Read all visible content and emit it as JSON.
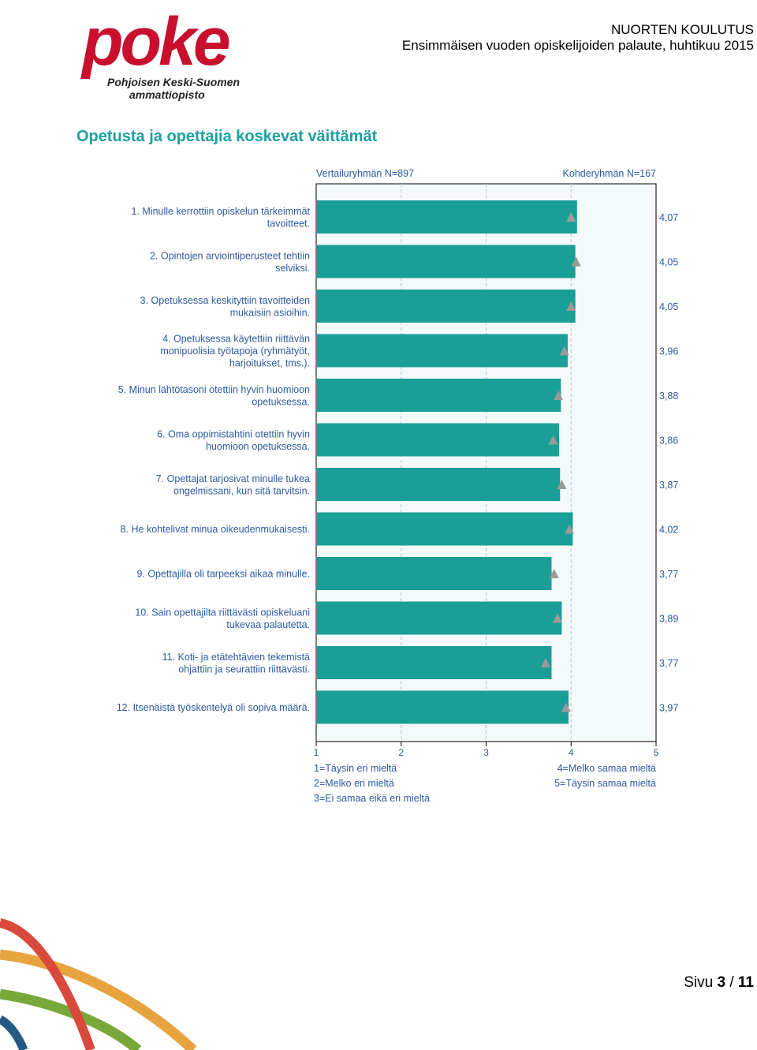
{
  "header": {
    "org": "NUORTEN KOULUTUS",
    "subtitle": "Ensimmäisen vuoden opiskelijoiden palaute, huhtikuu 2015"
  },
  "logo": {
    "word": "poke",
    "line1": "Pohjoisen Keski-Suomen",
    "line2": "ammattiopisto",
    "color": "#c8102e"
  },
  "section_title": "Opetusta ja opettajia koskevat väittämät",
  "page": {
    "prefix": "Sivu",
    "current": "3",
    "separator": "/",
    "total": "11"
  },
  "chart_data": {
    "type": "bar",
    "orientation": "horizontal",
    "xlim": [
      1,
      5
    ],
    "xticks": [
      "1",
      "2",
      "3",
      "4",
      "5"
    ],
    "grid": true,
    "comparison_label": "Vertailuryhmän  N=897",
    "target_label": "Kohderyhmän N=167",
    "bar_color": "#1a9e98",
    "marker_color": "#9a9a9a",
    "categories": [
      [
        "1. Minulle kerrottiin opiskelun tärkeimmät",
        "tavoitteet."
      ],
      [
        "2. Opintojen arviointiperusteet tehtiin",
        "selviksi."
      ],
      [
        "3. Opetuksessa keskityttiin tavoitteiden",
        "mukaisiin asioihin."
      ],
      [
        "4. Opetuksessa käytettiin riittävän",
        "monipuolisia työtapoja (ryhmätyöt,",
        "harjoitukset, tms.)."
      ],
      [
        "5. Minun lähtötasoni otettiin hyvin huomioon",
        "opetuksessa."
      ],
      [
        "6. Oma oppimistahtini otettiin hyvin",
        "huomioon opetuksessa."
      ],
      [
        "7. Opettajat tarjosivat minulle tukea",
        "ongelmissani, kun sitä tarvitsin."
      ],
      [
        "8. He kohtelivat minua oikeudenmukaisesti."
      ],
      [
        "9. Opettajilla oli tarpeeksi aikaa minulle."
      ],
      [
        "10. Sain opettajilta riittävästi opiskeluani",
        "tukevaa palautetta."
      ],
      [
        "11. Koti- ja etätehtävien tekemistä",
        "ohjattiin ja seurattiin riittävästi."
      ],
      [
        "12. Itsenäistä työskentelyä oli sopiva määrä."
      ]
    ],
    "series": [
      {
        "name": "Kohderyhmän N=167",
        "values": [
          4.07,
          4.05,
          4.05,
          3.96,
          3.88,
          3.86,
          3.87,
          4.02,
          3.77,
          3.89,
          3.77,
          3.97
        ]
      },
      {
        "name": "Vertailuryhmän  N=897",
        "values": [
          4.0,
          4.06,
          4.0,
          3.92,
          3.85,
          3.79,
          3.89,
          3.98,
          3.8,
          3.84,
          3.7,
          3.94
        ]
      }
    ],
    "value_labels": [
      "4,07",
      "4,05",
      "4,05",
      "3,96",
      "3,88",
      "3,86",
      "3,87",
      "4,02",
      "3,77",
      "3,89",
      "3,77",
      "3,97"
    ],
    "scale_legend": {
      "left": [
        "1=Täysin eri mieltä",
        "2=Melko eri mieltä",
        "3=Ei samaa eikä eri mieltä"
      ],
      "right": [
        "4=Melko samaa mieltä",
        "5=Täysin samaa mieltä"
      ]
    }
  }
}
